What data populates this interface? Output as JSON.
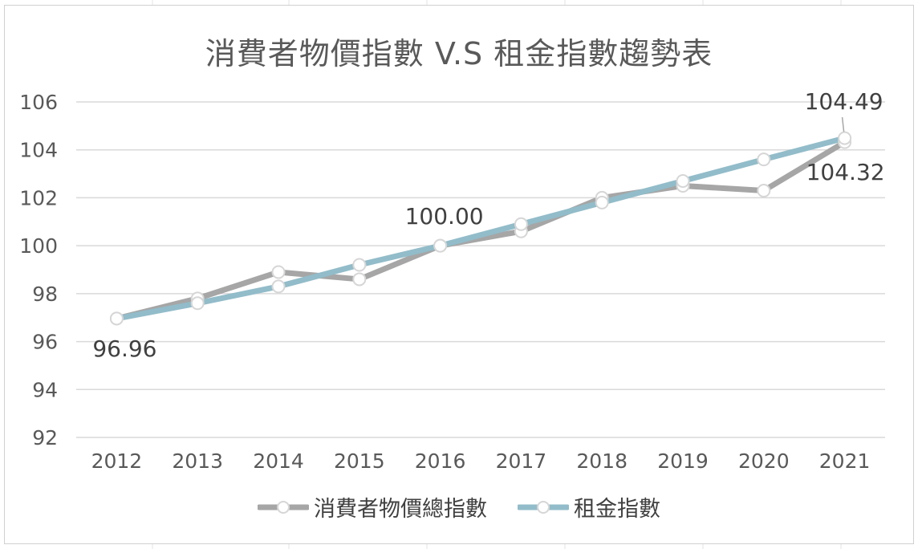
{
  "chart_data": {
    "type": "line",
    "title": "消費者物價指數 V.S 租金指數趨勢表",
    "categories": [
      "2012",
      "2013",
      "2014",
      "2015",
      "2016",
      "2017",
      "2018",
      "2019",
      "2020",
      "2021"
    ],
    "series": [
      {
        "name": "消費者物價總指數",
        "color": "#a6a6a6",
        "values": [
          96.96,
          97.8,
          98.9,
          98.6,
          100.0,
          100.6,
          102.0,
          102.5,
          102.3,
          104.32
        ]
      },
      {
        "name": "租金指數",
        "color": "#92bcc9",
        "values": [
          96.96,
          97.6,
          98.3,
          99.2,
          100.0,
          100.9,
          101.8,
          102.7,
          103.6,
          104.49
        ]
      }
    ],
    "ylim": [
      92,
      106
    ],
    "yticks": [
      "92",
      "94",
      "96",
      "98",
      "100",
      "102",
      "104",
      "106"
    ],
    "grid": true,
    "legend_position": "bottom",
    "annotations": [
      "96.96",
      "100.00",
      "104.49",
      "104.32"
    ]
  }
}
